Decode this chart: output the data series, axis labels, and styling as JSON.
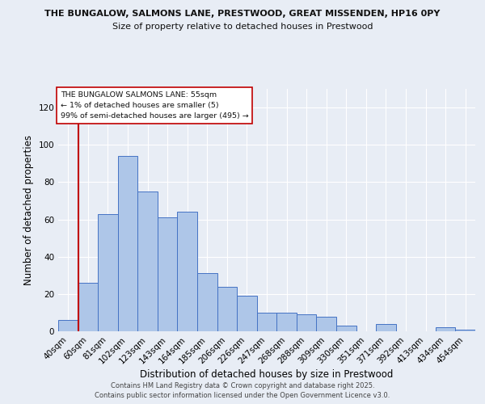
{
  "title1": "THE BUNGALOW, SALMONS LANE, PRESTWOOD, GREAT MISSENDEN, HP16 0PY",
  "title2": "Size of property relative to detached houses in Prestwood",
  "xlabel": "Distribution of detached houses by size in Prestwood",
  "ylabel": "Number of detached properties",
  "bin_labels": [
    "40sqm",
    "60sqm",
    "81sqm",
    "102sqm",
    "123sqm",
    "143sqm",
    "164sqm",
    "185sqm",
    "206sqm",
    "226sqm",
    "247sqm",
    "268sqm",
    "288sqm",
    "309sqm",
    "330sqm",
    "351sqm",
    "371sqm",
    "392sqm",
    "413sqm",
    "434sqm",
    "454sqm"
  ],
  "bar_values": [
    6,
    26,
    63,
    94,
    75,
    61,
    64,
    31,
    24,
    19,
    10,
    10,
    9,
    8,
    3,
    0,
    4,
    0,
    0,
    2,
    1
  ],
  "bar_color": "#aec6e8",
  "bar_edge_color": "#4472c4",
  "vline_color": "#c00000",
  "ylim": [
    0,
    130
  ],
  "yticks": [
    0,
    20,
    40,
    60,
    80,
    100,
    120
  ],
  "annotation_title": "THE BUNGALOW SALMONS LANE: 55sqm",
  "annotation_line1": "← 1% of detached houses are smaller (5)",
  "annotation_line2": "99% of semi-detached houses are larger (495) →",
  "annotation_box_color": "#ffffff",
  "annotation_box_edge": "#c00000",
  "footer1": "Contains HM Land Registry data © Crown copyright and database right 2025.",
  "footer2": "Contains public sector information licensed under the Open Government Licence v3.0.",
  "background_color": "#e8edf5",
  "plot_bg_color": "#e8edf5"
}
